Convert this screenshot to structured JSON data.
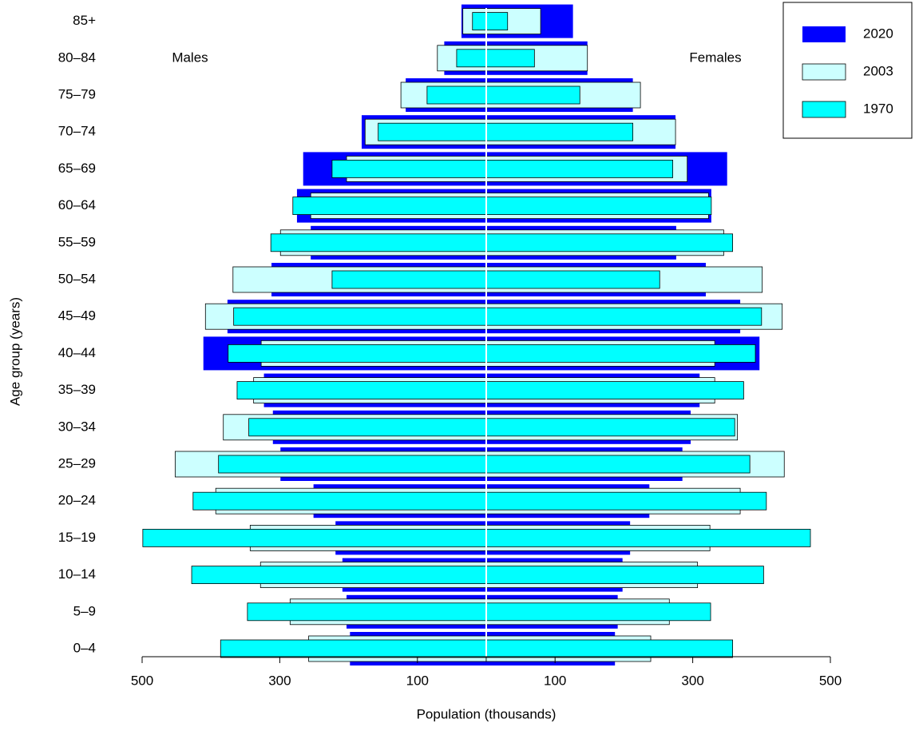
{
  "chart_data": {
    "type": "pyramid",
    "left_label": "Males",
    "right_label": "Females",
    "x_label": "Population (thousands)",
    "y_label": "Age group (years)",
    "categories": [
      "0–4",
      "5–9",
      "10–14",
      "15–19",
      "20–24",
      "25–29",
      "30–34",
      "35–39",
      "40–44",
      "45–49",
      "50–54",
      "55–59",
      "60–64",
      "65–69",
      "70–74",
      "75–79",
      "80–84",
      "85+"
    ],
    "xlim": [
      0,
      500
    ],
    "xticks": [
      100,
      300,
      500
    ],
    "legend": "top-right",
    "series": [
      {
        "name": "2020",
        "color": "#0000ff",
        "males": [
          198,
          203,
          209,
          219,
          251,
          299,
          310,
          323,
          411,
          376,
          312,
          255,
          275,
          266,
          181,
          117,
          61,
          36
        ],
        "females": [
          187,
          191,
          198,
          209,
          237,
          285,
          297,
          310,
          397,
          369,
          319,
          276,
          327,
          350,
          275,
          213,
          147,
          126
        ]
      },
      {
        "name": "2003",
        "color": "#ccffff",
        "males": [
          258,
          285,
          328,
          343,
          393,
          452,
          382,
          338,
          327,
          408,
          368,
          299,
          255,
          203,
          176,
          124,
          71,
          34
        ],
        "females": [
          239,
          266,
          307,
          325,
          369,
          433,
          365,
          332,
          332,
          430,
          401,
          345,
          323,
          292,
          275,
          224,
          147,
          79
        ]
      },
      {
        "name": "1970",
        "color": "#00ffff",
        "males": [
          386,
          347,
          428,
          499,
          426,
          389,
          345,
          362,
          375,
          367,
          224,
          313,
          281,
          224,
          157,
          86,
          43,
          20
        ],
        "females": [
          358,
          326,
          403,
          471,
          407,
          383,
          361,
          374,
          391,
          400,
          252,
          358,
          327,
          271,
          213,
          136,
          70,
          31
        ]
      }
    ]
  }
}
